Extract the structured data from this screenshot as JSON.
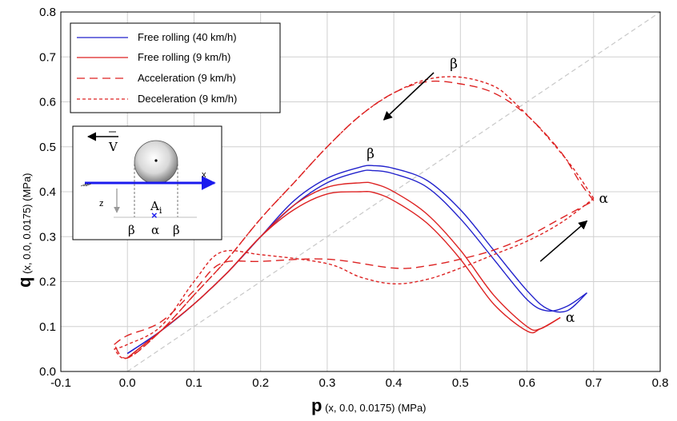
{
  "chart_data": {
    "type": "line",
    "xlabel_main": "p",
    "xlabel_sub": " (x, 0.0, 0.0175) (MPa)",
    "ylabel_main": "q",
    "ylabel_sub": " (x, 0.0, 0.0175) (MPa)",
    "xlim": [
      -0.1,
      0.8
    ],
    "ylim": [
      0.0,
      0.8
    ],
    "xticks": [
      -0.1,
      0,
      0.1,
      0.2,
      0.3,
      0.4,
      0.5,
      0.6,
      0.7,
      0.8
    ],
    "yticks": [
      0.0,
      0.1,
      0.2,
      0.3,
      0.4,
      0.5,
      0.6,
      0.7,
      0.8
    ],
    "xtick_labels": [
      "-0.1",
      "0.0",
      "0.1",
      "0.2",
      "0.3",
      "0.4",
      "0.5",
      "0.6",
      "0.7",
      "0.8"
    ],
    "ytick_labels": [
      "0.0",
      "0.1",
      "0.2",
      "0.3",
      "0.4",
      "0.5",
      "0.6",
      "0.7",
      "0.8"
    ],
    "grid": true,
    "legend_position": "top-left",
    "reference_line": {
      "x": [
        0,
        0.8
      ],
      "y": [
        0,
        0.8
      ],
      "color": "#c8c8c8",
      "style": "dashed"
    },
    "series": [
      {
        "name": "Free rolling (40 km/h)",
        "color": "#2222cc",
        "style": "solid",
        "loops": [
          {
            "x": [
              0.0,
              0.05,
              0.1,
              0.15,
              0.2,
              0.25,
              0.3,
              0.35,
              0.37,
              0.4,
              0.45,
              0.5,
              0.55,
              0.6,
              0.63,
              0.66,
              0.69
            ],
            "y": [
              0.04,
              0.09,
              0.15,
              0.22,
              0.3,
              0.37,
              0.42,
              0.445,
              0.447,
              0.44,
              0.41,
              0.34,
              0.25,
              0.16,
              0.135,
              0.145,
              0.175
            ]
          },
          {
            "x": [
              0.0,
              0.05,
              0.1,
              0.15,
              0.2,
              0.25,
              0.3,
              0.35,
              0.37,
              0.4,
              0.45,
              0.5,
              0.55,
              0.6,
              0.63,
              0.66,
              0.69
            ],
            "y": [
              0.04,
              0.09,
              0.15,
              0.22,
              0.3,
              0.38,
              0.43,
              0.455,
              0.458,
              0.452,
              0.425,
              0.36,
              0.27,
              0.18,
              0.14,
              0.135,
              0.175
            ]
          }
        ]
      },
      {
        "name": "Free rolling (9 km/h)",
        "color": "#dd2222",
        "style": "solid",
        "loops": [
          {
            "x": [
              0.0,
              0.05,
              0.1,
              0.15,
              0.2,
              0.25,
              0.3,
              0.35,
              0.37,
              0.4,
              0.45,
              0.5,
              0.55,
              0.6,
              0.62,
              0.65
            ],
            "y": [
              0.03,
              0.09,
              0.15,
              0.22,
              0.3,
              0.36,
              0.395,
              0.4,
              0.398,
              0.38,
              0.33,
              0.25,
              0.15,
              0.09,
              0.095,
              0.12
            ]
          },
          {
            "x": [
              0.0,
              0.05,
              0.1,
              0.15,
              0.2,
              0.25,
              0.3,
              0.35,
              0.37,
              0.4,
              0.45,
              0.5,
              0.55,
              0.6,
              0.62,
              0.65
            ],
            "y": [
              0.03,
              0.09,
              0.15,
              0.22,
              0.3,
              0.37,
              0.41,
              0.42,
              0.418,
              0.4,
              0.35,
              0.27,
              0.17,
              0.1,
              0.095,
              0.12
            ]
          }
        ]
      },
      {
        "name": "Acceleration (9 km/h)",
        "color": "#dd2222",
        "style": "dashed",
        "loops": [
          {
            "x": [
              -0.02,
              0.0,
              0.05,
              0.1,
              0.14,
              0.2,
              0.3,
              0.4,
              0.45,
              0.5,
              0.55,
              0.6,
              0.65,
              0.7
            ],
            "y": [
              0.06,
              0.08,
              0.11,
              0.18,
              0.24,
              0.245,
              0.25,
              0.23,
              0.235,
              0.25,
              0.27,
              0.3,
              0.34,
              0.38
            ]
          },
          {
            "x": [
              0.7,
              0.68,
              0.65,
              0.6,
              0.55,
              0.5,
              0.45,
              0.4,
              0.35,
              0.3,
              0.25,
              0.2,
              0.15,
              0.1,
              0.05,
              0.0,
              -0.02
            ],
            "y": [
              0.38,
              0.42,
              0.49,
              0.57,
              0.62,
              0.64,
              0.645,
              0.62,
              0.57,
              0.5,
              0.42,
              0.34,
              0.25,
              0.17,
              0.09,
              0.03,
              0.06
            ]
          }
        ]
      },
      {
        "name": "Deceleration (9 km/h)",
        "color": "#dd2222",
        "style": "dotted",
        "loops": [
          {
            "x": [
              -0.02,
              0.0,
              0.05,
              0.1,
              0.14,
              0.2,
              0.3,
              0.35,
              0.4,
              0.45,
              0.5,
              0.55,
              0.6,
              0.65,
              0.7
            ],
            "y": [
              0.05,
              0.06,
              0.1,
              0.2,
              0.265,
              0.26,
              0.24,
              0.21,
              0.195,
              0.205,
              0.23,
              0.26,
              0.29,
              0.33,
              0.385
            ]
          },
          {
            "x": [
              0.7,
              0.68,
              0.66,
              0.62,
              0.58,
              0.55,
              0.5,
              0.45,
              0.4,
              0.35,
              0.3,
              0.25,
              0.2,
              0.15,
              0.1,
              0.05,
              0.0,
              -0.02
            ],
            "y": [
              0.385,
              0.43,
              0.47,
              0.54,
              0.6,
              0.635,
              0.655,
              0.65,
              0.62,
              0.57,
              0.5,
              0.42,
              0.34,
              0.25,
              0.17,
              0.09,
              0.03,
              0.05
            ]
          }
        ]
      }
    ],
    "annotations": [
      {
        "text": "β",
        "x": 0.49,
        "y": 0.675
      },
      {
        "text": "β",
        "x": 0.365,
        "y": 0.475
      },
      {
        "text": "α",
        "x": 0.715,
        "y": 0.375
      },
      {
        "text": "α",
        "x": 0.665,
        "y": 0.11
      }
    ],
    "arrows": [
      {
        "from": [
          0.46,
          0.665
        ],
        "to": [
          0.385,
          0.56
        ]
      },
      {
        "from": [
          0.62,
          0.245
        ],
        "to": [
          0.69,
          0.335
        ]
      }
    ],
    "inset": {
      "velocity_label": "V",
      "x_axis_label": "x",
      "z_axis_label": "z",
      "point_label": "A",
      "point_subscript": "i",
      "left_label": "β",
      "middle_label": "α",
      "right_label": "β"
    }
  }
}
